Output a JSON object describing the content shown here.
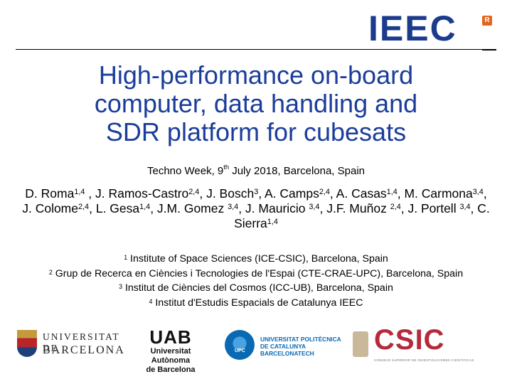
{
  "header": {
    "logo_text": "IEEC",
    "logo_badge": "R"
  },
  "title": {
    "line1": "High-performance on-board",
    "line2": "computer, data handling and",
    "line3": "SDR platform for cubesats"
  },
  "event": {
    "pre": "Techno Week, 9",
    "sup": "th",
    "post": " July 2018, Barcelona, Spain"
  },
  "authors": [
    {
      "name": "D. Roma",
      "aff": "1,4",
      "sep": " , "
    },
    {
      "name": "J. Ramos-Castro",
      "aff": "2,4",
      "sep": ", "
    },
    {
      "name": "J. Bosch",
      "aff": "3",
      "sep": ", "
    },
    {
      "name": "A. Camps",
      "aff": "2,4",
      "sep": ", "
    },
    {
      "name": "A. Casas",
      "aff": "1,4",
      "sep": ", "
    },
    {
      "name": "M. Carmona",
      "aff": "3,4",
      "sep": ", "
    },
    {
      "name": "J. Colome",
      "aff": "2,4",
      "sep": ", "
    },
    {
      "name": "L. Gesa",
      "aff": "1,4",
      "sep": ", "
    },
    {
      "name": "J.M. Gomez ",
      "aff": "3,4",
      "sep": ", "
    },
    {
      "name": "J. Mauricio ",
      "aff": "3,4",
      "sep": ", "
    },
    {
      "name": "J.F. Muñoz ",
      "aff": "2,4",
      "sep": ", "
    },
    {
      "name": "J. Portell ",
      "aff": "3,4",
      "sep": ", "
    },
    {
      "name": "C. Sierra",
      "aff": "1,4",
      "sep": ""
    }
  ],
  "affiliations": [
    {
      "num": "1",
      "text": " Institute of Space Sciences (ICE-CSIC), Barcelona, Spain"
    },
    {
      "num": "2",
      "text": " Grup de Recerca en Ciències i Tecnologies de l'Espai (CTE-CRAE-UPC), Barcelona, Spain"
    },
    {
      "num": "3",
      "text": " Institut de Ciències del Cosmos (ICC-UB), Barcelona, Spain"
    },
    {
      "num": "4",
      "text": " Institut d'Estudis Espacials de Catalunya IEEC"
    }
  ],
  "logos": {
    "ub": {
      "line1": "UNIVERSITAT DE",
      "line2": "BARCELONA"
    },
    "uab": {
      "mark": "UAB",
      "line1": "Universitat Autònoma",
      "line2": "de Barcelona"
    },
    "upc": {
      "mark": "UPC",
      "line1": "UNIVERSITAT POLITÈCNICA",
      "line2": "DE CATALUNYA",
      "line3": "BARCELONATECH"
    },
    "csic": {
      "mark": "CSIC",
      "sub": "CONSEJO SUPERIOR DE INVESTIGACIONES CIENTÍFICAS"
    }
  }
}
